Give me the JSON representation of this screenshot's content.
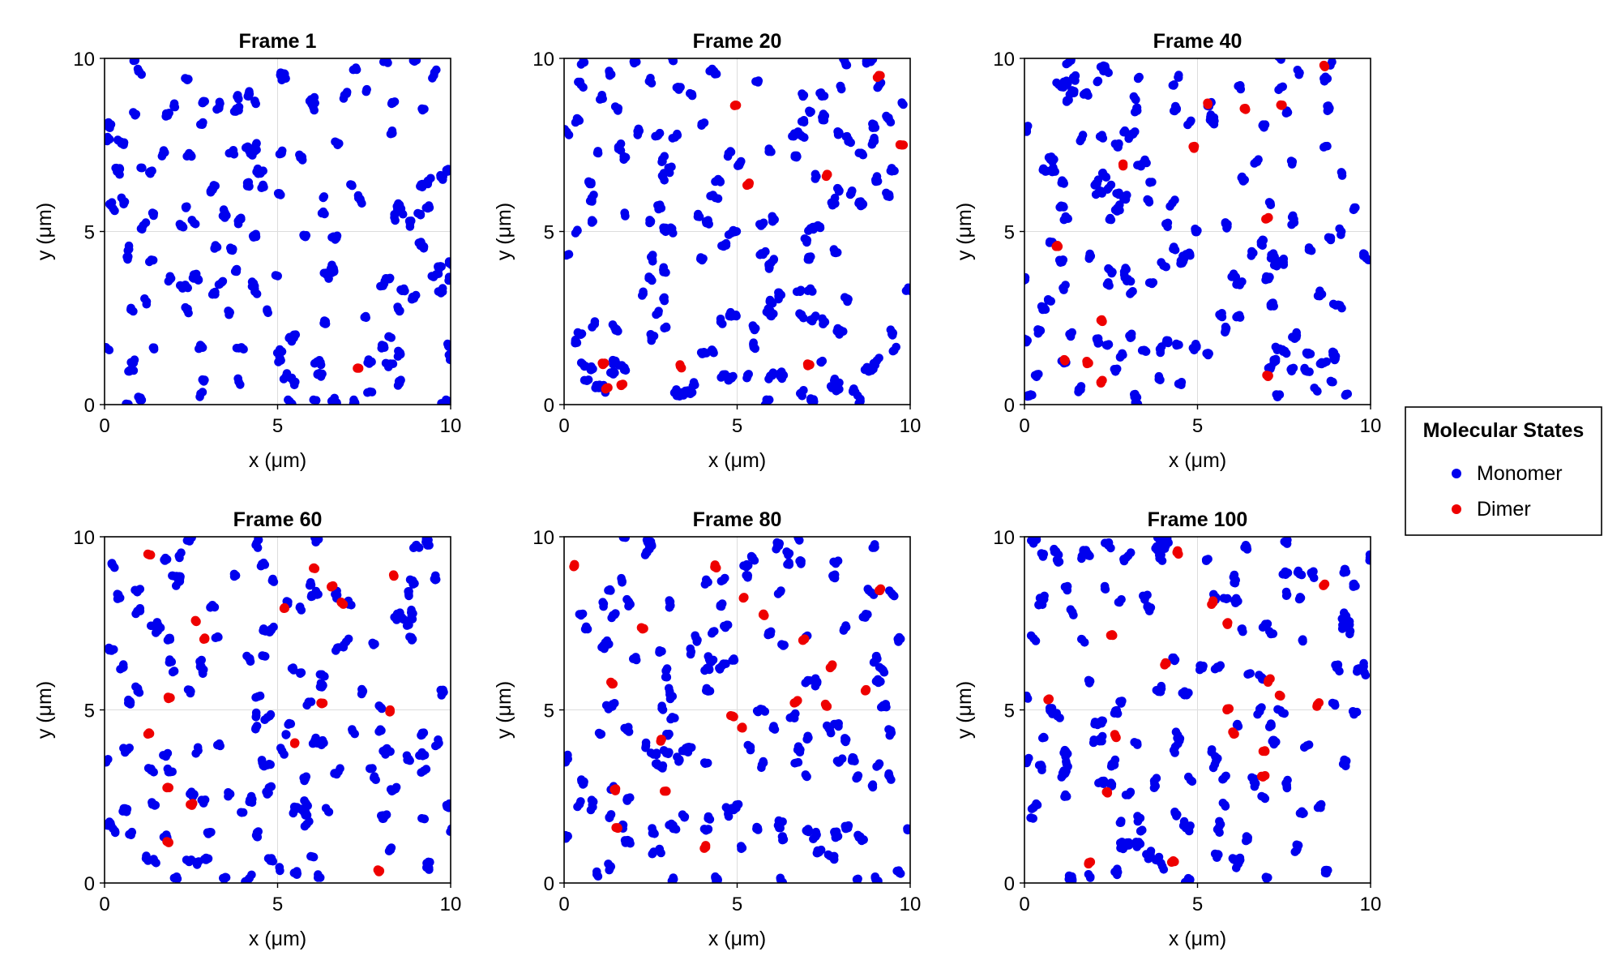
{
  "figure_title": "",
  "legend": {
    "title": "Molecular States",
    "entries": [
      {
        "label": "Monomer",
        "color": "#0000ee"
      },
      {
        "label": "Dimer",
        "color": "#ee0000"
      }
    ]
  },
  "chart_data": [
    {
      "type": "scatter",
      "title": "Frame 1",
      "xlabel": "x (μm)",
      "ylabel": "y (μm)",
      "xlim": [
        0,
        10
      ],
      "ylim": [
        0,
        10
      ],
      "xticks": [
        "0",
        "5",
        "10"
      ],
      "yticks": [
        "0",
        "5",
        "10"
      ],
      "grid": true,
      "seed": 11,
      "n_monomer": 150,
      "dimers": [
        [
          7.35,
          1.05
        ]
      ]
    },
    {
      "type": "scatter",
      "title": "Frame 20",
      "xlabel": "x (μm)",
      "ylabel": "y (μm)",
      "xlim": [
        0,
        10
      ],
      "ylim": [
        0,
        10
      ],
      "xticks": [
        "0",
        "5",
        "10"
      ],
      "yticks": [
        "0",
        "5",
        "10"
      ],
      "grid": true,
      "seed": 23,
      "n_monomer": 145,
      "dimers": [
        [
          4.95,
          8.65
        ],
        [
          9.05,
          9.45
        ],
        [
          9.8,
          7.5
        ],
        [
          7.6,
          6.65
        ],
        [
          5.35,
          6.4
        ],
        [
          1.1,
          1.2
        ],
        [
          1.2,
          0.45
        ],
        [
          1.65,
          0.55
        ],
        [
          3.35,
          1.15
        ],
        [
          7.1,
          1.15
        ]
      ]
    },
    {
      "type": "scatter",
      "title": "Frame 40",
      "xlabel": "x (μm)",
      "ylabel": "y (μm)",
      "xlim": [
        0,
        10
      ],
      "ylim": [
        0,
        10
      ],
      "xticks": [
        "0",
        "5",
        "10"
      ],
      "yticks": [
        "0",
        "5",
        "10"
      ],
      "grid": true,
      "seed": 37,
      "n_monomer": 140,
      "dimers": [
        [
          8.65,
          9.8
        ],
        [
          5.3,
          8.7
        ],
        [
          6.35,
          8.55
        ],
        [
          7.45,
          8.65
        ],
        [
          4.9,
          7.4
        ],
        [
          2.85,
          6.95
        ],
        [
          7.05,
          5.4
        ],
        [
          0.95,
          4.6
        ],
        [
          2.25,
          2.4
        ],
        [
          1.15,
          1.3
        ],
        [
          1.8,
          1.25
        ],
        [
          2.25,
          0.7
        ],
        [
          7.0,
          0.85
        ]
      ]
    },
    {
      "type": "scatter",
      "title": "Frame 60",
      "xlabel": "x (μm)",
      "ylabel": "y (μm)",
      "xlim": [
        0,
        10
      ],
      "ylim": [
        0,
        10
      ],
      "xticks": [
        "0",
        "5",
        "10"
      ],
      "yticks": [
        "0",
        "5",
        "10"
      ],
      "grid": true,
      "seed": 41,
      "n_monomer": 135,
      "dimers": [
        [
          1.25,
          9.5
        ],
        [
          6.05,
          9.1
        ],
        [
          8.35,
          8.9
        ],
        [
          6.55,
          8.55
        ],
        [
          6.9,
          8.05
        ],
        [
          5.2,
          7.95
        ],
        [
          2.65,
          7.55
        ],
        [
          2.9,
          7.05
        ],
        [
          1.9,
          5.35
        ],
        [
          6.25,
          5.2
        ],
        [
          8.25,
          5.0
        ],
        [
          1.25,
          4.3
        ],
        [
          5.5,
          4.05
        ],
        [
          1.8,
          2.75
        ],
        [
          2.55,
          2.3
        ],
        [
          1.8,
          1.2
        ],
        [
          7.95,
          0.35
        ]
      ]
    },
    {
      "type": "scatter",
      "title": "Frame 80",
      "xlabel": "x (μm)",
      "ylabel": "y (μm)",
      "xlim": [
        0,
        10
      ],
      "ylim": [
        0,
        10
      ],
      "xticks": [
        "0",
        "5",
        "10"
      ],
      "yticks": [
        "0",
        "5",
        "10"
      ],
      "grid": true,
      "seed": 53,
      "n_monomer": 135,
      "dimers": [
        [
          0.3,
          9.2
        ],
        [
          4.4,
          9.1
        ],
        [
          9.1,
          8.45
        ],
        [
          5.2,
          8.25
        ],
        [
          5.75,
          7.75
        ],
        [
          2.3,
          7.35
        ],
        [
          6.95,
          7.05
        ],
        [
          7.75,
          6.3
        ],
        [
          1.35,
          5.8
        ],
        [
          8.7,
          5.55
        ],
        [
          6.65,
          5.2
        ],
        [
          7.6,
          5.1
        ],
        [
          4.9,
          4.8
        ],
        [
          5.15,
          4.5
        ],
        [
          2.8,
          4.15
        ],
        [
          1.45,
          2.7
        ],
        [
          2.95,
          2.65
        ],
        [
          1.5,
          1.6
        ],
        [
          4.05,
          1.0
        ]
      ]
    },
    {
      "type": "scatter",
      "title": "Frame 100",
      "xlabel": "x (μm)",
      "ylabel": "y (μm)",
      "xlim": [
        0,
        10
      ],
      "ylim": [
        0,
        10
      ],
      "xticks": [
        "0",
        "5",
        "10"
      ],
      "yticks": [
        "0",
        "5",
        "10"
      ],
      "grid": true,
      "seed": 67,
      "n_monomer": 130,
      "dimers": [
        [
          4.45,
          9.5
        ],
        [
          8.65,
          8.6
        ],
        [
          5.45,
          8.15
        ],
        [
          5.85,
          7.5
        ],
        [
          2.55,
          7.15
        ],
        [
          4.05,
          6.3
        ],
        [
          7.1,
          5.9
        ],
        [
          0.7,
          5.3
        ],
        [
          7.4,
          5.4
        ],
        [
          8.45,
          5.1
        ],
        [
          5.85,
          5.0
        ],
        [
          2.65,
          4.2
        ],
        [
          6.05,
          4.3
        ],
        [
          6.95,
          3.8
        ],
        [
          6.95,
          3.1
        ],
        [
          2.4,
          2.6
        ],
        [
          1.85,
          0.55
        ],
        [
          4.25,
          0.6
        ]
      ]
    }
  ]
}
